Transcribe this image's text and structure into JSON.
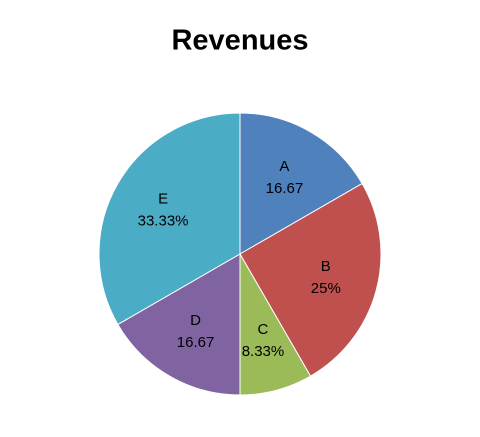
{
  "chart_data": {
    "type": "pie",
    "title": "Revenues",
    "categories": [
      "A",
      "B",
      "C",
      "D",
      "E"
    ],
    "values": [
      16.67,
      25,
      8.33,
      16.67,
      33.33
    ],
    "value_labels": [
      "16.67",
      "25%",
      "8.33%",
      "16.67",
      "33.33%"
    ],
    "colors": [
      "#4f81bd",
      "#c0504d",
      "#9bbb59",
      "#8064a2",
      "#4bacc6"
    ]
  }
}
